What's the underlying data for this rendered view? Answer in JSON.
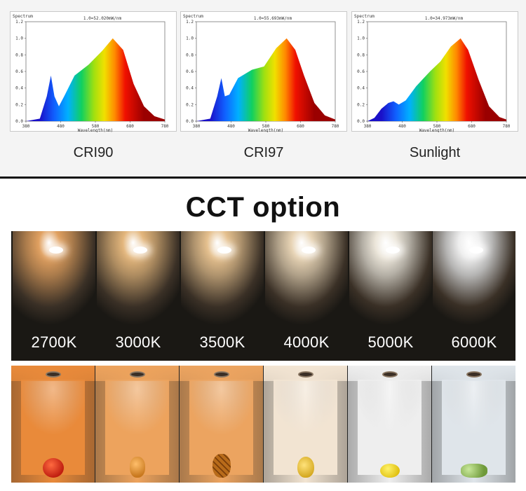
{
  "spectra": [
    {
      "y_label": "Spectrum",
      "header": "1.0=52.020mW/nm",
      "x_label": "Wavelength(nm)",
      "yticks": [
        "1.2",
        "1.0",
        "0.8",
        "0.6",
        "0.4",
        "0.2",
        "0.0"
      ],
      "xticks": [
        "380",
        "480",
        "580",
        "680",
        "780"
      ],
      "caption": "CRI90"
    },
    {
      "y_label": "Spectrum",
      "header": "1.0=55.693mW/nm",
      "x_label": "Wavelength(nm)",
      "yticks": [
        "1.2",
        "1.0",
        "0.8",
        "0.6",
        "0.4",
        "0.2",
        "0.0"
      ],
      "xticks": [
        "380",
        "480",
        "580",
        "680",
        "780"
      ],
      "caption": "CRI97"
    },
    {
      "y_label": "Spectrum",
      "header": "1.0=34.973mW/nm",
      "x_label": "Wavelength(nm)",
      "yticks": [
        "1.2",
        "1.0",
        "0.8",
        "0.6",
        "0.4",
        "0.2",
        "0.0"
      ],
      "xticks": [
        "380",
        "480",
        "580",
        "680",
        "780"
      ],
      "caption": "Sunlight"
    }
  ],
  "cct": {
    "title": "CCT option",
    "options": [
      {
        "label": "2700K",
        "color": "#e0a060"
      },
      {
        "label": "3000K",
        "color": "#e3b67c"
      },
      {
        "label": "3500K",
        "color": "#e5c08e"
      },
      {
        "label": "4000K",
        "color": "#e7d3b4"
      },
      {
        "label": "5000K",
        "color": "#ece6da"
      },
      {
        "label": "6000K",
        "color": "#eeeeee"
      }
    ]
  },
  "rooms": [
    {
      "fruit": "apple",
      "wall": "#e98a3a"
    },
    {
      "fruit": "papaya",
      "wall": "#eda35d"
    },
    {
      "fruit": "pineapple",
      "wall": "#eca460"
    },
    {
      "fruit": "pear",
      "wall": "#f2e4d2"
    },
    {
      "fruit": "lemon",
      "wall": "#eeeeee"
    },
    {
      "fruit": "grapes",
      "wall": "#dfe5ea"
    }
  ]
}
